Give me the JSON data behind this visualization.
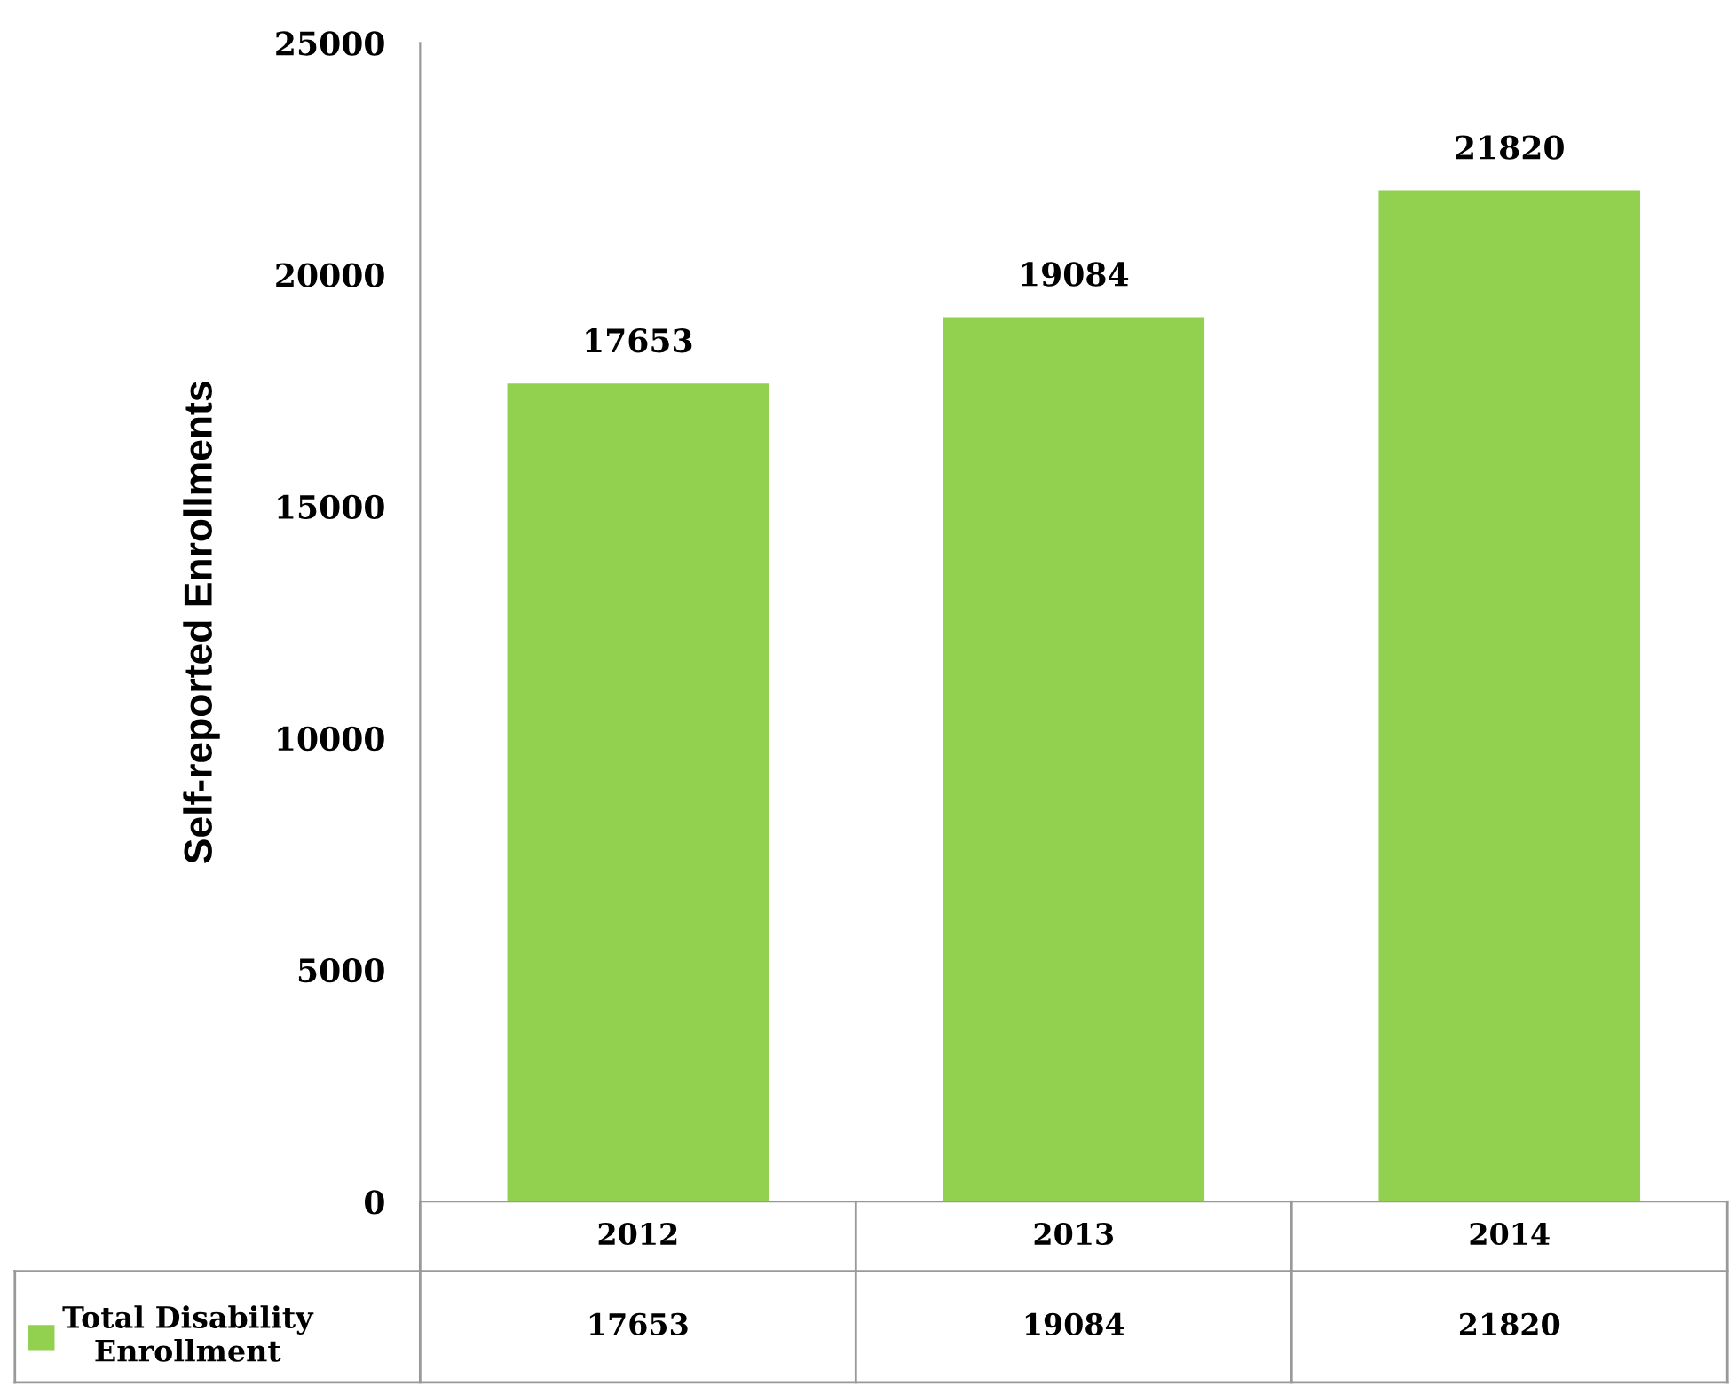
{
  "chart_data": {
    "type": "bar",
    "ylabel": "Self-reported Enrollments",
    "categories": [
      "2012",
      "2013",
      "2014"
    ],
    "series": [
      {
        "name": "Total Disability Enrollment",
        "color": "#92d050",
        "values": [
          17653,
          19084,
          21820
        ],
        "value_labels": [
          "17653",
          "19084",
          "21820"
        ]
      }
    ],
    "ylim": [
      0,
      25000
    ],
    "yticks": [
      0,
      5000,
      10000,
      15000,
      20000,
      25000
    ],
    "annotations": [
      "17653",
      "19084",
      "21820"
    ],
    "grid": false,
    "legend": "bottom left"
  }
}
